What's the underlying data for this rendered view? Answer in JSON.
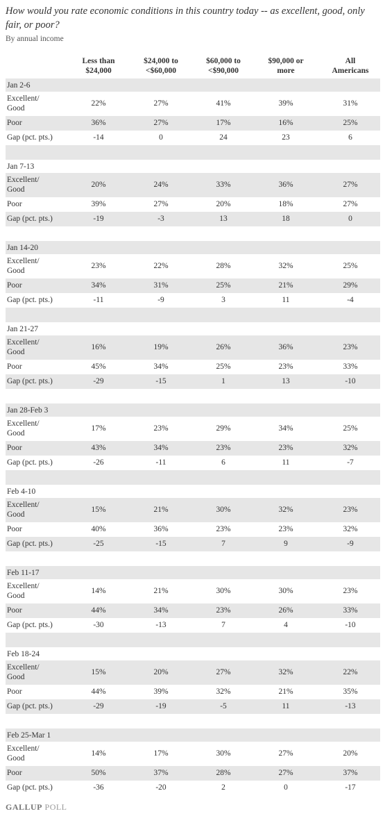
{
  "title": "How would you rate economic conditions in this country today -- as excellent, good, only fair, or poor?",
  "subtitle": "By annual income",
  "columns": [
    [
      "Less than",
      "$24,000"
    ],
    [
      "$24,000 to",
      "<$60,000"
    ],
    [
      "$60,000 to",
      "<$90,000"
    ],
    [
      "$90,000 or",
      "more"
    ],
    [
      "All",
      "Americans"
    ]
  ],
  "groups": [
    {
      "label": "Jan 2-6",
      "rows": [
        {
          "label": [
            "Excellent/",
            "Good"
          ],
          "values": [
            "22%",
            "27%",
            "41%",
            "39%",
            "31%"
          ]
        },
        {
          "label": [
            "Poor"
          ],
          "values": [
            "36%",
            "27%",
            "17%",
            "16%",
            "25%"
          ]
        },
        {
          "label": [
            "Gap (pct. pts.)"
          ],
          "values": [
            "-14",
            "0",
            "24",
            "23",
            "6"
          ]
        }
      ]
    },
    {
      "label": "Jan 7-13",
      "rows": [
        {
          "label": [
            "Excellent/",
            "Good"
          ],
          "values": [
            "20%",
            "24%",
            "33%",
            "36%",
            "27%"
          ]
        },
        {
          "label": [
            "Poor"
          ],
          "values": [
            "39%",
            "27%",
            "20%",
            "18%",
            "27%"
          ]
        },
        {
          "label": [
            "Gap (pct. pts.)"
          ],
          "values": [
            "-19",
            "-3",
            "13",
            "18",
            "0"
          ]
        }
      ]
    },
    {
      "label": "Jan 14-20",
      "rows": [
        {
          "label": [
            "Excellent/",
            "Good"
          ],
          "values": [
            "23%",
            "22%",
            "28%",
            "32%",
            "25%"
          ]
        },
        {
          "label": [
            "Poor"
          ],
          "values": [
            "34%",
            "31%",
            "25%",
            "21%",
            "29%"
          ]
        },
        {
          "label": [
            "Gap (pct. pts.)"
          ],
          "values": [
            "-11",
            "-9",
            "3",
            "11",
            "-4"
          ]
        }
      ]
    },
    {
      "label": "Jan 21-27",
      "rows": [
        {
          "label": [
            "Excellent/",
            "Good"
          ],
          "values": [
            "16%",
            "19%",
            "26%",
            "36%",
            "23%"
          ]
        },
        {
          "label": [
            "Poor"
          ],
          "values": [
            "45%",
            "34%",
            "25%",
            "23%",
            "33%"
          ]
        },
        {
          "label": [
            "Gap (pct. pts.)"
          ],
          "values": [
            "-29",
            "-15",
            "1",
            "13",
            "-10"
          ]
        }
      ]
    },
    {
      "label": "Jan 28-Feb 3",
      "rows": [
        {
          "label": [
            "Excellent/",
            "Good"
          ],
          "values": [
            "17%",
            "23%",
            "29%",
            "34%",
            "25%"
          ]
        },
        {
          "label": [
            "Poor"
          ],
          "values": [
            "43%",
            "34%",
            "23%",
            "23%",
            "32%"
          ]
        },
        {
          "label": [
            "Gap (pct. pts.)"
          ],
          "values": [
            "-26",
            "-11",
            "6",
            "11",
            "-7"
          ]
        }
      ]
    },
    {
      "label": "Feb 4-10",
      "rows": [
        {
          "label": [
            "Excellent/",
            "Good"
          ],
          "values": [
            "15%",
            "21%",
            "30%",
            "32%",
            "23%"
          ]
        },
        {
          "label": [
            "Poor"
          ],
          "values": [
            "40%",
            "36%",
            "23%",
            "23%",
            "32%"
          ]
        },
        {
          "label": [
            "Gap (pct. pts.)"
          ],
          "values": [
            "-25",
            "-15",
            "7",
            "9",
            "-9"
          ]
        }
      ]
    },
    {
      "label": "Feb 11-17",
      "rows": [
        {
          "label": [
            "Excellent/",
            "Good"
          ],
          "values": [
            "14%",
            "21%",
            "30%",
            "30%",
            "23%"
          ]
        },
        {
          "label": [
            "Poor"
          ],
          "values": [
            "44%",
            "34%",
            "23%",
            "26%",
            "33%"
          ]
        },
        {
          "label": [
            "Gap (pct. pts.)"
          ],
          "values": [
            "-30",
            "-13",
            "7",
            "4",
            "-10"
          ]
        }
      ]
    },
    {
      "label": "Feb 18-24",
      "rows": [
        {
          "label": [
            "Excellent/",
            "Good"
          ],
          "values": [
            "15%",
            "20%",
            "27%",
            "32%",
            "22%"
          ]
        },
        {
          "label": [
            "Poor"
          ],
          "values": [
            "44%",
            "39%",
            "32%",
            "21%",
            "35%"
          ]
        },
        {
          "label": [
            "Gap (pct. pts.)"
          ],
          "values": [
            "-29",
            "-19",
            "-5",
            "11",
            "-13"
          ]
        }
      ]
    },
    {
      "label": "Feb 25-Mar 1",
      "rows": [
        {
          "label": [
            "Excellent/",
            "Good"
          ],
          "values": [
            "14%",
            "17%",
            "30%",
            "27%",
            "20%"
          ]
        },
        {
          "label": [
            "Poor"
          ],
          "values": [
            "50%",
            "37%",
            "28%",
            "27%",
            "37%"
          ]
        },
        {
          "label": [
            "Gap (pct. pts.)"
          ],
          "values": [
            "-36",
            "-20",
            "2",
            "0",
            "-17"
          ]
        }
      ]
    }
  ],
  "footer": {
    "brand": "GALLUP",
    "product": "POLL"
  }
}
